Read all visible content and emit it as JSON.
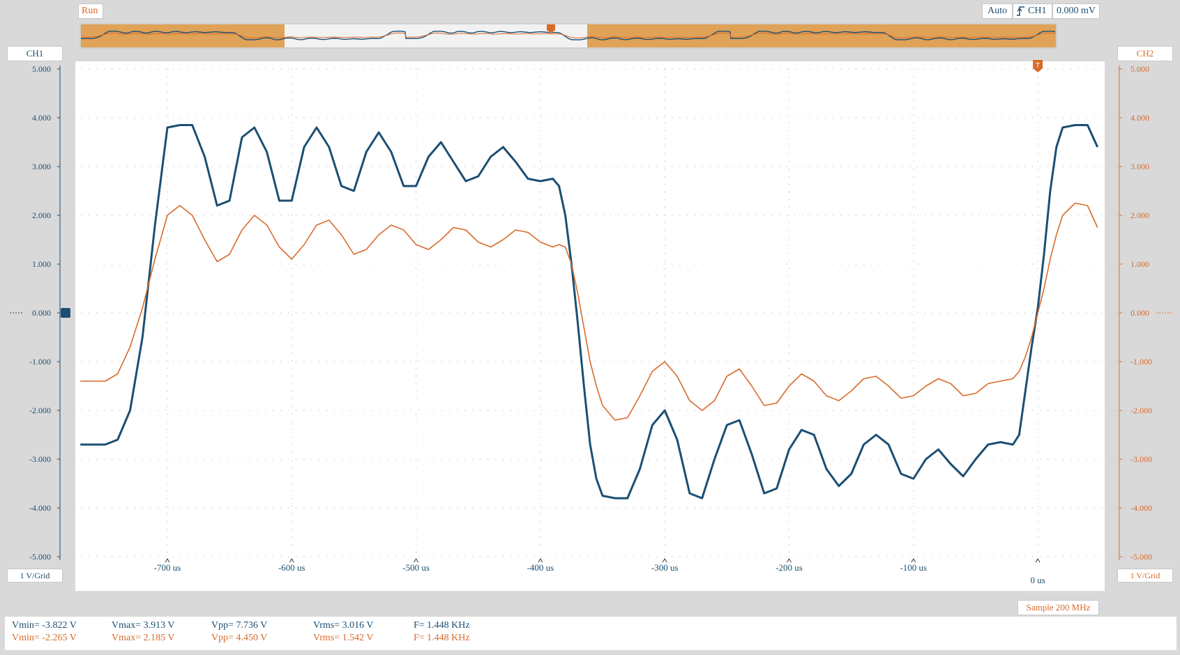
{
  "status": {
    "run_label": "Run",
    "trigger_mode": "Auto",
    "trigger_source": "CH1",
    "trigger_level": "0.000 mV",
    "trigger_marker_label": "T"
  },
  "channels": {
    "ch1": {
      "label": "CH1",
      "scale": "1 V/Grid",
      "color": "#1b4f72"
    },
    "ch2": {
      "label": "CH2",
      "scale": "1 V/Grid",
      "color": "#d96a2b"
    }
  },
  "sample_rate": "Sample 200 MHz",
  "measurements": {
    "ch1": {
      "vmin": "Vmin= -3.822 V",
      "vmax": "Vmax= 3.913 V",
      "vpp": "Vpp= 7.736 V",
      "vrms": "Vrms= 3.016 V",
      "freq": "F= 1.448 KHz"
    },
    "ch2": {
      "vmin": "Vmin= -2.265 V",
      "vmax": "Vmax= 2.185 V",
      "vpp": "Vpp= 4.450 V",
      "vrms": "Vrms= 1.542 V",
      "freq": "F= 1.448 KHz"
    }
  },
  "chart_data": {
    "type": "line",
    "xlabel": "",
    "ylabel": "",
    "x_unit": "us",
    "xlim": [
      -770,
      50
    ],
    "ylim": [
      -5,
      5
    ],
    "grid": true,
    "x_ticks": [
      {
        "value": -700,
        "label": "-700 us"
      },
      {
        "value": -600,
        "label": "-600 us"
      },
      {
        "value": -500,
        "label": "-500 us"
      },
      {
        "value": -400,
        "label": "-400 us"
      },
      {
        "value": -300,
        "label": "-300 us"
      },
      {
        "value": -200,
        "label": "-200 us"
      },
      {
        "value": -100,
        "label": "-100 us"
      },
      {
        "value": 0,
        "label": "0 us"
      }
    ],
    "y_ticks": [
      {
        "value": 5,
        "label": "5.000"
      },
      {
        "value": 4,
        "label": "4.000"
      },
      {
        "value": 3,
        "label": "3.000"
      },
      {
        "value": 2,
        "label": "2.000"
      },
      {
        "value": 1,
        "label": "1.000"
      },
      {
        "value": 0,
        "label": "0.000"
      },
      {
        "value": -1,
        "label": "-1.000"
      },
      {
        "value": -2,
        "label": "-2.000"
      },
      {
        "value": -3,
        "label": "-3.000"
      },
      {
        "value": -4,
        "label": "-4.000"
      },
      {
        "value": -5,
        "label": "-5.000"
      }
    ],
    "series": [
      {
        "name": "CH1",
        "color": "#1b4f72",
        "x": [
          -770,
          -750,
          -740,
          -730,
          -720,
          -710,
          -700,
          -690,
          -680,
          -670,
          -660,
          -650,
          -640,
          -630,
          -620,
          -610,
          -600,
          -590,
          -580,
          -570,
          -560,
          -550,
          -540,
          -530,
          -520,
          -510,
          -500,
          -490,
          -480,
          -470,
          -460,
          -450,
          -440,
          -430,
          -420,
          -410,
          -400,
          -390,
          -385,
          -380,
          -375,
          -370,
          -365,
          -360,
          -355,
          -350,
          -340,
          -330,
          -320,
          -310,
          -300,
          -290,
          -280,
          -270,
          -260,
          -250,
          -240,
          -230,
          -220,
          -210,
          -200,
          -190,
          -180,
          -170,
          -160,
          -150,
          -140,
          -130,
          -120,
          -110,
          -100,
          -90,
          -80,
          -70,
          -60,
          -50,
          -40,
          -30,
          -20,
          -15,
          -10,
          -5,
          0,
          5,
          10,
          15,
          20,
          30,
          40,
          48
        ],
        "y": [
          -2.7,
          -2.7,
          -2.6,
          -2.0,
          -0.5,
          1.8,
          3.8,
          3.85,
          3.85,
          3.2,
          2.2,
          2.3,
          3.6,
          3.8,
          3.3,
          2.3,
          2.3,
          3.4,
          3.8,
          3.4,
          2.6,
          2.5,
          3.3,
          3.7,
          3.3,
          2.6,
          2.6,
          3.2,
          3.5,
          3.1,
          2.7,
          2.8,
          3.2,
          3.4,
          3.1,
          2.75,
          2.7,
          2.75,
          2.6,
          2.0,
          1.0,
          -0.2,
          -1.5,
          -2.7,
          -3.4,
          -3.75,
          -3.8,
          -3.8,
          -3.2,
          -2.3,
          -2.0,
          -2.6,
          -3.7,
          -3.8,
          -3.0,
          -2.3,
          -2.2,
          -2.9,
          -3.7,
          -3.6,
          -2.8,
          -2.4,
          -2.5,
          -3.2,
          -3.55,
          -3.3,
          -2.7,
          -2.5,
          -2.7,
          -3.3,
          -3.4,
          -3.0,
          -2.8,
          -3.1,
          -3.35,
          -3.0,
          -2.7,
          -2.65,
          -2.7,
          -2.5,
          -1.6,
          -0.7,
          0.1,
          1.2,
          2.5,
          3.4,
          3.8,
          3.85,
          3.85,
          3.4
        ]
      },
      {
        "name": "CH2",
        "color": "#d96a2b",
        "x": [
          -770,
          -750,
          -740,
          -730,
          -720,
          -710,
          -700,
          -690,
          -680,
          -670,
          -660,
          -650,
          -640,
          -630,
          -620,
          -610,
          -600,
          -590,
          -580,
          -570,
          -560,
          -550,
          -540,
          -530,
          -520,
          -510,
          -500,
          -490,
          -480,
          -470,
          -460,
          -450,
          -440,
          -430,
          -420,
          -410,
          -400,
          -390,
          -385,
          -380,
          -375,
          -370,
          -365,
          -360,
          -355,
          -350,
          -340,
          -330,
          -320,
          -310,
          -300,
          -290,
          -280,
          -270,
          -260,
          -250,
          -240,
          -230,
          -220,
          -210,
          -200,
          -190,
          -180,
          -170,
          -160,
          -150,
          -140,
          -130,
          -120,
          -110,
          -100,
          -90,
          -80,
          -70,
          -60,
          -50,
          -40,
          -30,
          -20,
          -15,
          -10,
          -5,
          0,
          5,
          10,
          15,
          20,
          30,
          40,
          48
        ],
        "y": [
          -1.4,
          -1.4,
          -1.25,
          -0.7,
          0.1,
          1.1,
          2.0,
          2.2,
          2.0,
          1.5,
          1.05,
          1.2,
          1.7,
          2.0,
          1.8,
          1.35,
          1.1,
          1.4,
          1.8,
          1.9,
          1.6,
          1.2,
          1.3,
          1.6,
          1.8,
          1.7,
          1.4,
          1.3,
          1.5,
          1.75,
          1.7,
          1.45,
          1.35,
          1.5,
          1.7,
          1.65,
          1.45,
          1.35,
          1.4,
          1.35,
          1.0,
          0.4,
          -0.3,
          -1.0,
          -1.5,
          -1.9,
          -2.2,
          -2.15,
          -1.7,
          -1.2,
          -1.0,
          -1.3,
          -1.8,
          -2.0,
          -1.8,
          -1.3,
          -1.15,
          -1.5,
          -1.9,
          -1.85,
          -1.5,
          -1.25,
          -1.4,
          -1.7,
          -1.8,
          -1.6,
          -1.35,
          -1.3,
          -1.5,
          -1.75,
          -1.7,
          -1.5,
          -1.35,
          -1.45,
          -1.7,
          -1.65,
          -1.45,
          -1.4,
          -1.35,
          -1.2,
          -0.9,
          -0.5,
          0.0,
          0.5,
          1.1,
          1.6,
          2.0,
          2.25,
          2.2,
          1.75
        ]
      }
    ]
  }
}
